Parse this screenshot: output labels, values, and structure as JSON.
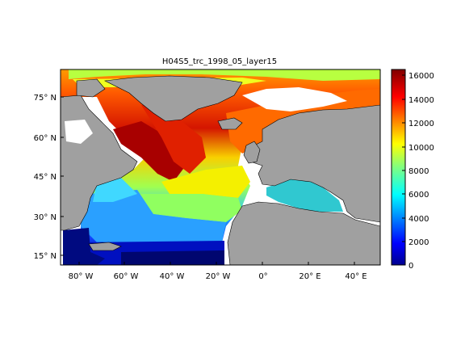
{
  "title": "H04S5_trc_1998_05_layer15",
  "latitude_ticks": [
    "75° N",
    "60° N",
    "45° N",
    "30° N",
    "15° N"
  ],
  "longitude_ticks": [
    "80° W",
    "60° W",
    "40° W",
    "20° W",
    "0°",
    "20° E",
    "40° E"
  ],
  "colorbar": {
    "ticks": [
      "16000",
      "14000",
      "12000",
      "10000",
      "8000",
      "6000",
      "4000",
      "2000",
      "0"
    ],
    "min": 0,
    "max": 16500,
    "colormap": "jet"
  },
  "colors": {
    "land": "#a0a0a0",
    "ocean_nodata": "#ffffff"
  }
}
